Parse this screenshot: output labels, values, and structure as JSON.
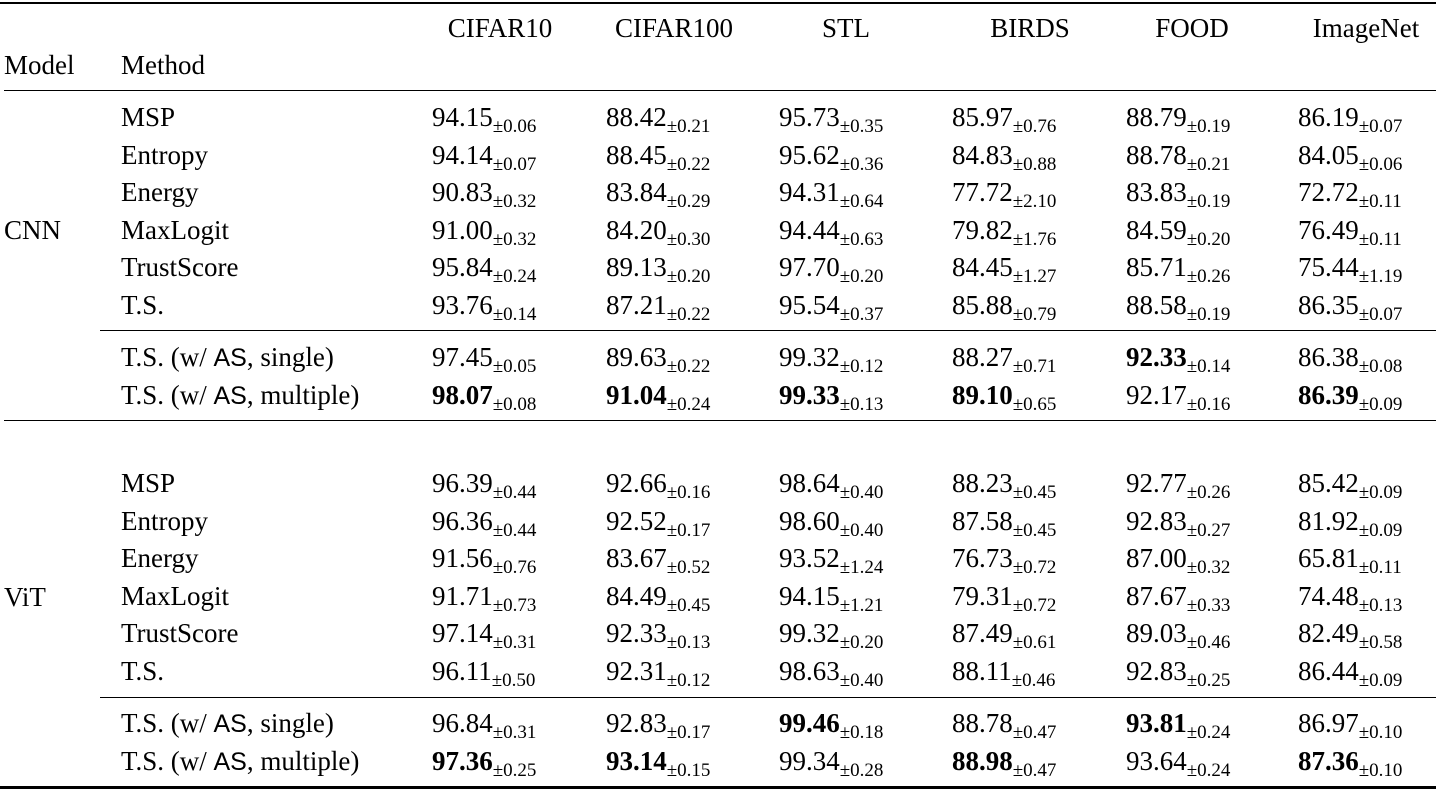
{
  "table": {
    "header": {
      "model_label": "Model",
      "method_label": "Method",
      "datasets": [
        "CIFAR10",
        "CIFAR100",
        "STL",
        "BIRDS",
        "FOOD",
        "ImageNet"
      ]
    },
    "groups": [
      {
        "model": "CNN",
        "baseline_rows": [
          {
            "method": "MSP",
            "cells": [
              {
                "v": "94.15",
                "sd": "±0.06",
                "bold": false
              },
              {
                "v": "88.42",
                "sd": "±0.21",
                "bold": false
              },
              {
                "v": "95.73",
                "sd": "±0.35",
                "bold": false
              },
              {
                "v": "85.97",
                "sd": "±0.76",
                "bold": false
              },
              {
                "v": "88.79",
                "sd": "±0.19",
                "bold": false
              },
              {
                "v": "86.19",
                "sd": "±0.07",
                "bold": false
              }
            ]
          },
          {
            "method": "Entropy",
            "cells": [
              {
                "v": "94.14",
                "sd": "±0.07",
                "bold": false
              },
              {
                "v": "88.45",
                "sd": "±0.22",
                "bold": false
              },
              {
                "v": "95.62",
                "sd": "±0.36",
                "bold": false
              },
              {
                "v": "84.83",
                "sd": "±0.88",
                "bold": false
              },
              {
                "v": "88.78",
                "sd": "±0.21",
                "bold": false
              },
              {
                "v": "84.05",
                "sd": "±0.06",
                "bold": false
              }
            ]
          },
          {
            "method": "Energy",
            "cells": [
              {
                "v": "90.83",
                "sd": "±0.32",
                "bold": false
              },
              {
                "v": "83.84",
                "sd": "±0.29",
                "bold": false
              },
              {
                "v": "94.31",
                "sd": "±0.64",
                "bold": false
              },
              {
                "v": "77.72",
                "sd": "±2.10",
                "bold": false
              },
              {
                "v": "83.83",
                "sd": "±0.19",
                "bold": false
              },
              {
                "v": "72.72",
                "sd": "±0.11",
                "bold": false
              }
            ]
          },
          {
            "method": "MaxLogit",
            "cells": [
              {
                "v": "91.00",
                "sd": "±0.32",
                "bold": false
              },
              {
                "v": "84.20",
                "sd": "±0.30",
                "bold": false
              },
              {
                "v": "94.44",
                "sd": "±0.63",
                "bold": false
              },
              {
                "v": "79.82",
                "sd": "±1.76",
                "bold": false
              },
              {
                "v": "84.59",
                "sd": "±0.20",
                "bold": false
              },
              {
                "v": "76.49",
                "sd": "±0.11",
                "bold": false
              }
            ]
          },
          {
            "method": "TrustScore",
            "cells": [
              {
                "v": "95.84",
                "sd": "±0.24",
                "bold": false
              },
              {
                "v": "89.13",
                "sd": "±0.20",
                "bold": false
              },
              {
                "v": "97.70",
                "sd": "±0.20",
                "bold": false
              },
              {
                "v": "84.45",
                "sd": "±1.27",
                "bold": false
              },
              {
                "v": "85.71",
                "sd": "±0.26",
                "bold": false
              },
              {
                "v": "75.44",
                "sd": "±1.19",
                "bold": false
              }
            ]
          },
          {
            "method": "T.S.",
            "cells": [
              {
                "v": "93.76",
                "sd": "±0.14",
                "bold": false
              },
              {
                "v": "87.21",
                "sd": "±0.22",
                "bold": false
              },
              {
                "v": "95.54",
                "sd": "±0.37",
                "bold": false
              },
              {
                "v": "85.88",
                "sd": "±0.79",
                "bold": false
              },
              {
                "v": "88.58",
                "sd": "±0.19",
                "bold": false
              },
              {
                "v": "86.35",
                "sd": "±0.07",
                "bold": false
              }
            ]
          }
        ],
        "ours_rows": [
          {
            "method_prefix": "T.S. (w/ ",
            "method_as": "AS",
            "method_suffix": ", single)",
            "cells": [
              {
                "v": "97.45",
                "sd": "±0.05",
                "bold": false
              },
              {
                "v": "89.63",
                "sd": "±0.22",
                "bold": false
              },
              {
                "v": "99.32",
                "sd": "±0.12",
                "bold": false
              },
              {
                "v": "88.27",
                "sd": "±0.71",
                "bold": false
              },
              {
                "v": "92.33",
                "sd": "±0.14",
                "bold": true
              },
              {
                "v": "86.38",
                "sd": "±0.08",
                "bold": false
              }
            ]
          },
          {
            "method_prefix": "T.S. (w/ ",
            "method_as": "AS",
            "method_suffix": ", multiple)",
            "cells": [
              {
                "v": "98.07",
                "sd": "±0.08",
                "bold": true
              },
              {
                "v": "91.04",
                "sd": "±0.24",
                "bold": true
              },
              {
                "v": "99.33",
                "sd": "±0.13",
                "bold": true
              },
              {
                "v": "89.10",
                "sd": "±0.65",
                "bold": true
              },
              {
                "v": "92.17",
                "sd": "±0.16",
                "bold": false
              },
              {
                "v": "86.39",
                "sd": "±0.09",
                "bold": true
              }
            ]
          }
        ]
      },
      {
        "model": "ViT",
        "baseline_rows": [
          {
            "method": "MSP",
            "cells": [
              {
                "v": "96.39",
                "sd": "±0.44",
                "bold": false
              },
              {
                "v": "92.66",
                "sd": "±0.16",
                "bold": false
              },
              {
                "v": "98.64",
                "sd": "±0.40",
                "bold": false
              },
              {
                "v": "88.23",
                "sd": "±0.45",
                "bold": false
              },
              {
                "v": "92.77",
                "sd": "±0.26",
                "bold": false
              },
              {
                "v": "85.42",
                "sd": "±0.09",
                "bold": false
              }
            ]
          },
          {
            "method": "Entropy",
            "cells": [
              {
                "v": "96.36",
                "sd": "±0.44",
                "bold": false
              },
              {
                "v": "92.52",
                "sd": "±0.17",
                "bold": false
              },
              {
                "v": "98.60",
                "sd": "±0.40",
                "bold": false
              },
              {
                "v": "87.58",
                "sd": "±0.45",
                "bold": false
              },
              {
                "v": "92.83",
                "sd": "±0.27",
                "bold": false
              },
              {
                "v": "81.92",
                "sd": "±0.09",
                "bold": false
              }
            ]
          },
          {
            "method": "Energy",
            "cells": [
              {
                "v": "91.56",
                "sd": "±0.76",
                "bold": false
              },
              {
                "v": "83.67",
                "sd": "±0.52",
                "bold": false
              },
              {
                "v": "93.52",
                "sd": "±1.24",
                "bold": false
              },
              {
                "v": "76.73",
                "sd": "±0.72",
                "bold": false
              },
              {
                "v": "87.00",
                "sd": "±0.32",
                "bold": false
              },
              {
                "v": "65.81",
                "sd": "±0.11",
                "bold": false
              }
            ]
          },
          {
            "method": "MaxLogit",
            "cells": [
              {
                "v": "91.71",
                "sd": "±0.73",
                "bold": false
              },
              {
                "v": "84.49",
                "sd": "±0.45",
                "bold": false
              },
              {
                "v": "94.15",
                "sd": "±1.21",
                "bold": false
              },
              {
                "v": "79.31",
                "sd": "±0.72",
                "bold": false
              },
              {
                "v": "87.67",
                "sd": "±0.33",
                "bold": false
              },
              {
                "v": "74.48",
                "sd": "±0.13",
                "bold": false
              }
            ]
          },
          {
            "method": "TrustScore",
            "cells": [
              {
                "v": "97.14",
                "sd": "±0.31",
                "bold": false
              },
              {
                "v": "92.33",
                "sd": "±0.13",
                "bold": false
              },
              {
                "v": "99.32",
                "sd": "±0.20",
                "bold": false
              },
              {
                "v": "87.49",
                "sd": "±0.61",
                "bold": false
              },
              {
                "v": "89.03",
                "sd": "±0.46",
                "bold": false
              },
              {
                "v": "82.49",
                "sd": "±0.58",
                "bold": false
              }
            ]
          },
          {
            "method": "T.S.",
            "cells": [
              {
                "v": "96.11",
                "sd": "±0.50",
                "bold": false
              },
              {
                "v": "92.31",
                "sd": "±0.12",
                "bold": false
              },
              {
                "v": "98.63",
                "sd": "±0.40",
                "bold": false
              },
              {
                "v": "88.11",
                "sd": "±0.46",
                "bold": false
              },
              {
                "v": "92.83",
                "sd": "±0.25",
                "bold": false
              },
              {
                "v": "86.44",
                "sd": "±0.09",
                "bold": false
              }
            ]
          }
        ],
        "ours_rows": [
          {
            "method_prefix": "T.S. (w/ ",
            "method_as": "AS",
            "method_suffix": ", single)",
            "cells": [
              {
                "v": "96.84",
                "sd": "±0.31",
                "bold": false
              },
              {
                "v": "92.83",
                "sd": "±0.17",
                "bold": false
              },
              {
                "v": "99.46",
                "sd": "±0.18",
                "bold": true
              },
              {
                "v": "88.78",
                "sd": "±0.47",
                "bold": false
              },
              {
                "v": "93.81",
                "sd": "±0.24",
                "bold": true
              },
              {
                "v": "86.97",
                "sd": "±0.10",
                "bold": false
              }
            ]
          },
          {
            "method_prefix": "T.S. (w/ ",
            "method_as": "AS",
            "method_suffix": ", multiple)",
            "cells": [
              {
                "v": "97.36",
                "sd": "±0.25",
                "bold": true
              },
              {
                "v": "93.14",
                "sd": "±0.15",
                "bold": true
              },
              {
                "v": "99.34",
                "sd": "±0.28",
                "bold": false
              },
              {
                "v": "88.98",
                "sd": "±0.47",
                "bold": true
              },
              {
                "v": "93.64",
                "sd": "±0.24",
                "bold": false
              },
              {
                "v": "87.36",
                "sd": "±0.10",
                "bold": true
              }
            ]
          }
        ]
      }
    ]
  }
}
